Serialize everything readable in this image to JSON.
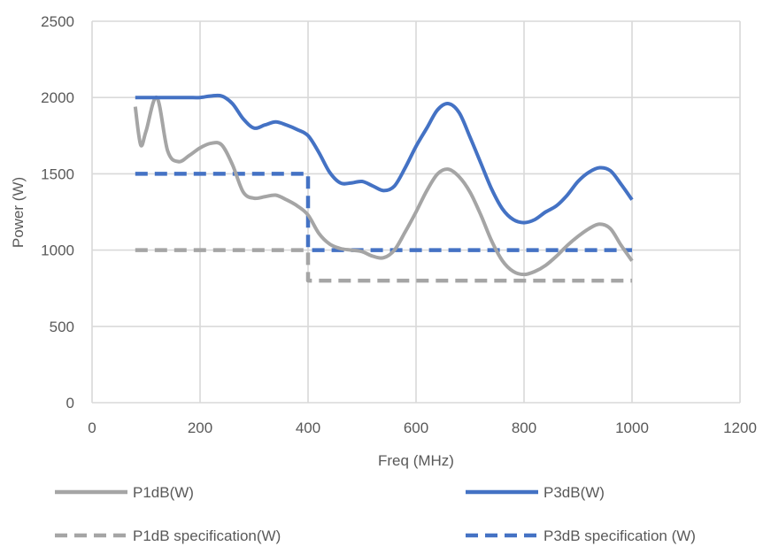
{
  "chart_data": {
    "type": "line",
    "title": "",
    "xlabel": "Freq (MHz)",
    "ylabel": "Power (W)",
    "xlim": [
      0,
      1200
    ],
    "ylim": [
      0,
      2500
    ],
    "xticks": [
      0,
      200,
      400,
      600,
      800,
      1000,
      1200
    ],
    "yticks": [
      0,
      500,
      1000,
      1500,
      2000,
      2500
    ],
    "grid": true,
    "legend_position": "bottom",
    "series": [
      {
        "name": "P1dB(W)",
        "color": "#a5a5a5",
        "style": "solid",
        "x": [
          80,
          90,
          100,
          120,
          140,
          160,
          180,
          200,
          220,
          240,
          260,
          280,
          300,
          320,
          340,
          360,
          380,
          400,
          420,
          440,
          460,
          480,
          500,
          520,
          540,
          560,
          580,
          600,
          620,
          640,
          660,
          680,
          700,
          720,
          740,
          760,
          780,
          800,
          820,
          840,
          860,
          880,
          900,
          920,
          940,
          960,
          980,
          1000
        ],
        "values": [
          1940,
          1690,
          1780,
          2000,
          1650,
          1580,
          1620,
          1670,
          1700,
          1690,
          1560,
          1380,
          1340,
          1350,
          1360,
          1330,
          1290,
          1230,
          1110,
          1040,
          1010,
          1000,
          990,
          960,
          950,
          1000,
          1120,
          1250,
          1390,
          1500,
          1530,
          1480,
          1380,
          1230,
          1060,
          930,
          860,
          840,
          860,
          900,
          960,
          1030,
          1090,
          1140,
          1170,
          1140,
          1030,
          930
        ]
      },
      {
        "name": "P3dB(W)",
        "color": "#4472c4",
        "style": "solid",
        "x": [
          80,
          100,
          120,
          140,
          160,
          180,
          200,
          220,
          240,
          260,
          280,
          300,
          320,
          340,
          360,
          380,
          400,
          420,
          440,
          460,
          480,
          500,
          520,
          540,
          560,
          580,
          600,
          620,
          640,
          660,
          680,
          700,
          720,
          740,
          760,
          780,
          800,
          820,
          840,
          860,
          880,
          900,
          920,
          940,
          960,
          980,
          1000
        ],
        "values": [
          2000,
          2000,
          2000,
          2000,
          2000,
          2000,
          2000,
          2010,
          2010,
          1960,
          1860,
          1800,
          1820,
          1840,
          1820,
          1790,
          1750,
          1640,
          1510,
          1440,
          1440,
          1450,
          1420,
          1390,
          1420,
          1540,
          1680,
          1800,
          1920,
          1960,
          1900,
          1740,
          1570,
          1400,
          1270,
          1200,
          1180,
          1200,
          1250,
          1290,
          1360,
          1450,
          1510,
          1540,
          1520,
          1430,
          1330
        ]
      },
      {
        "name": "P1dB specification(W)",
        "color": "#a5a5a5",
        "style": "dashed",
        "x": [
          80,
          400,
          400,
          1000
        ],
        "values": [
          1000,
          1000,
          800,
          800
        ]
      },
      {
        "name": "P3dB specification (W)",
        "color": "#4472c4",
        "style": "dashed",
        "x": [
          80,
          400,
          400,
          1000
        ],
        "values": [
          1500,
          1500,
          1000,
          1000
        ]
      }
    ]
  }
}
